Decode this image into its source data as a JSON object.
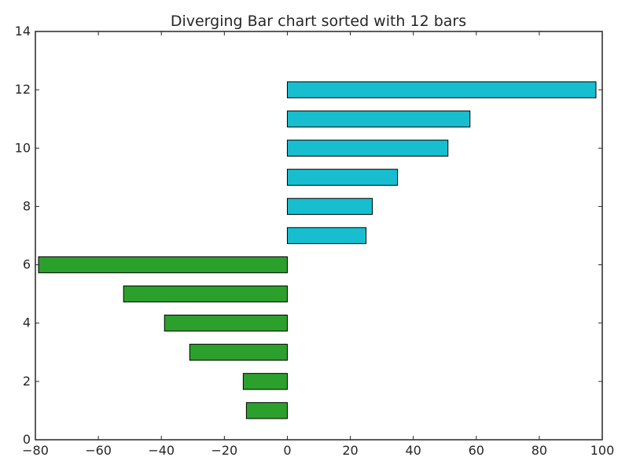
{
  "chart_data": {
    "type": "bar",
    "orientation": "horizontal",
    "title": "Diverging Bar chart sorted with 12 bars",
    "xlabel": "",
    "ylabel": "",
    "xlim": [
      -80,
      100
    ],
    "ylim": [
      0,
      14
    ],
    "x_ticks": [
      -80,
      -60,
      -40,
      -20,
      0,
      20,
      40,
      60,
      80,
      100
    ],
    "x_tick_labels": [
      "−80",
      "−60",
      "−40",
      "−20",
      "0",
      "20",
      "40",
      "60",
      "80",
      "100"
    ],
    "y_ticks": [
      0,
      2,
      4,
      6,
      8,
      10,
      12,
      14
    ],
    "y_tick_labels": [
      "0",
      "2",
      "4",
      "6",
      "8",
      "10",
      "12",
      "14"
    ],
    "grid": false,
    "legend": "none",
    "negative_color": "#2ca02c",
    "positive_color": "#17becf",
    "categories": [
      1,
      2,
      3,
      4,
      5,
      6,
      7,
      8,
      9,
      10,
      11,
      12
    ],
    "values": [
      -13,
      -14,
      -31,
      -39,
      -52,
      -79,
      25,
      27,
      35,
      51,
      58,
      98
    ]
  }
}
